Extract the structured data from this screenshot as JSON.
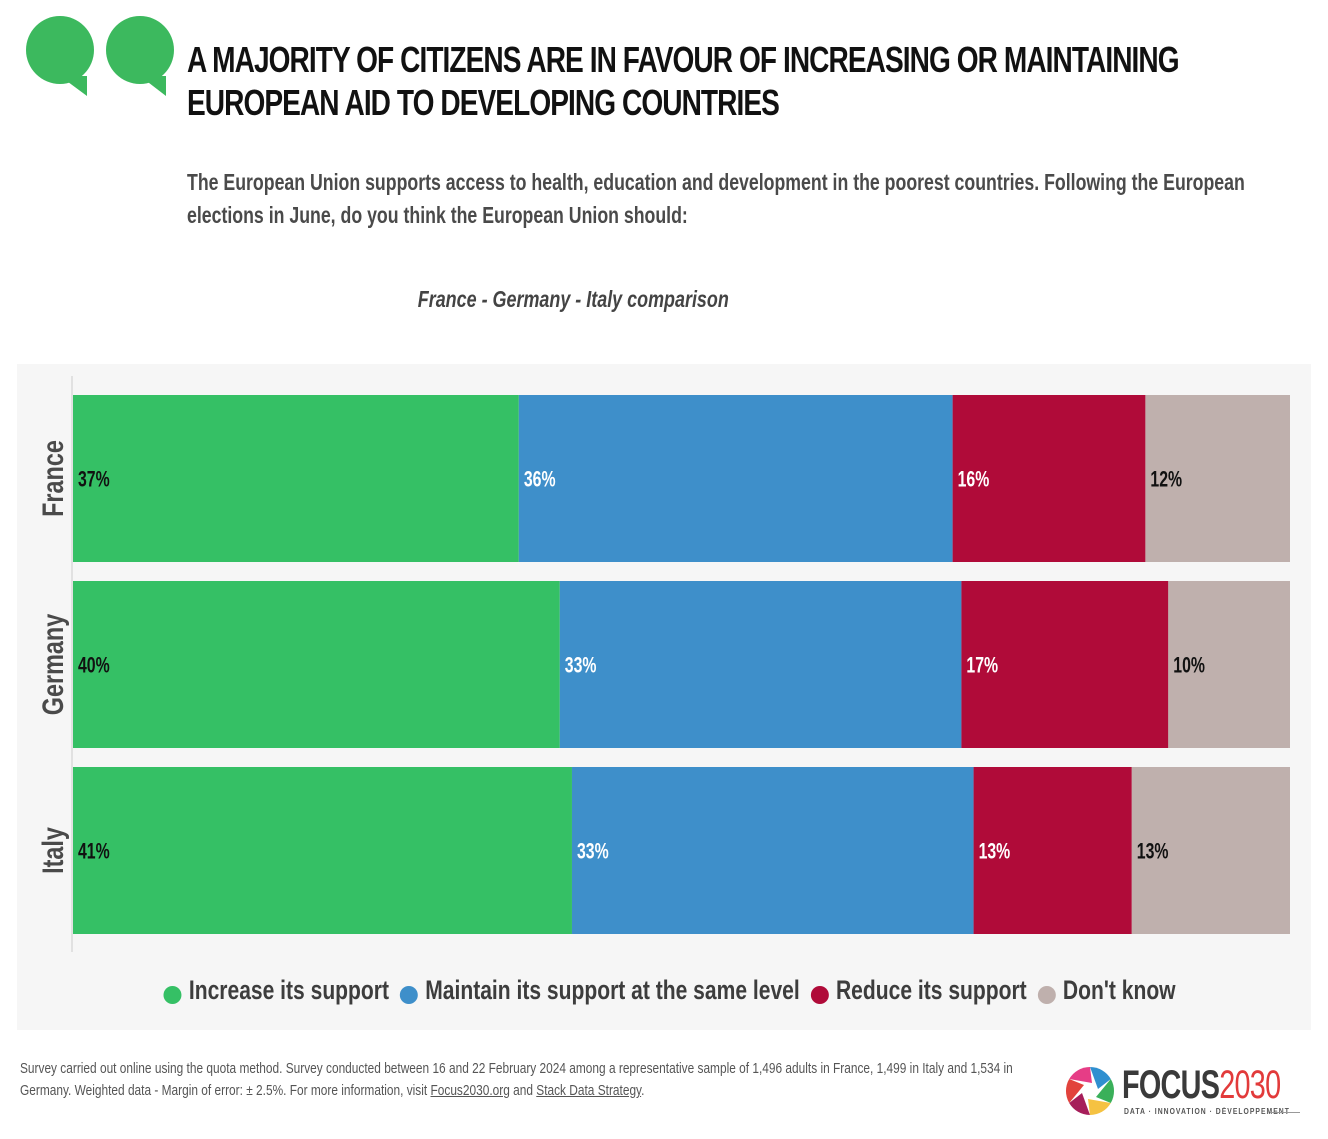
{
  "header": {
    "title": "A majority of citizens are in favour of increasing or maintaining European aid to developing countries",
    "title_line1": "A MAJORITY OF CITIZENS ARE IN FAVOUR OF INCREASING OR MAINTAINING",
    "title_line2": "EUROPEAN AID TO DEVELOPING COUNTRIES",
    "subtitle": "The European Union supports access to health, education and development in the poorest countries. Following the European elections in June, do you think the European Union should:",
    "quote_icon": "speech-bubbles-icon",
    "quote_color": "#3cb95e"
  },
  "chart_data": {
    "type": "bar",
    "orientation": "horizontal",
    "stacked": true,
    "title": "France - Germany - Italy comparison",
    "xlabel": "",
    "ylabel": "",
    "xlim": [
      0,
      100
    ],
    "grid": false,
    "legend_position": "bottom",
    "categories": [
      "France",
      "Germany",
      "Italy"
    ],
    "series": [
      {
        "name": "Increase its support",
        "color": "#35c065",
        "label_color": "#111111",
        "values": [
          37,
          40,
          41
        ],
        "labels": [
          "37%",
          "40%",
          "41%"
        ]
      },
      {
        "name": "Maintain its support at the same level",
        "color": "#3e8fca",
        "label_color": "#ffffff",
        "values": [
          36,
          33,
          33
        ],
        "labels": [
          "36%",
          "33%",
          "33%"
        ]
      },
      {
        "name": "Reduce its support",
        "color": "#b00b39",
        "label_color": "#ffffff",
        "values": [
          16,
          17,
          13
        ],
        "labels": [
          "16%",
          "17%",
          "13%"
        ]
      },
      {
        "name": "Don't know",
        "color": "#bfb0ad",
        "label_color": "#111111",
        "values": [
          12,
          10,
          13
        ],
        "labels": [
          "12%",
          "10%",
          "13%"
        ]
      }
    ]
  },
  "footnote": {
    "text": "Survey carried out online using the quota method. Survey conducted between 16 and 22 February 2024 among a representative sample of 1,496 adults in France, 1,499 in Italy and 1,534 in Germany. Weighted data - Margin of error: ± 2.5%. For more information, visit ",
    "link1": "Focus2030.org",
    "between": " and ",
    "link2": "Stack Data Strategy",
    "end": "."
  },
  "logo": {
    "word_dark": "FOCUS",
    "word_red": "2030",
    "tagline": "DATA · INNOVATION · DÉVELOPPEMENT"
  }
}
